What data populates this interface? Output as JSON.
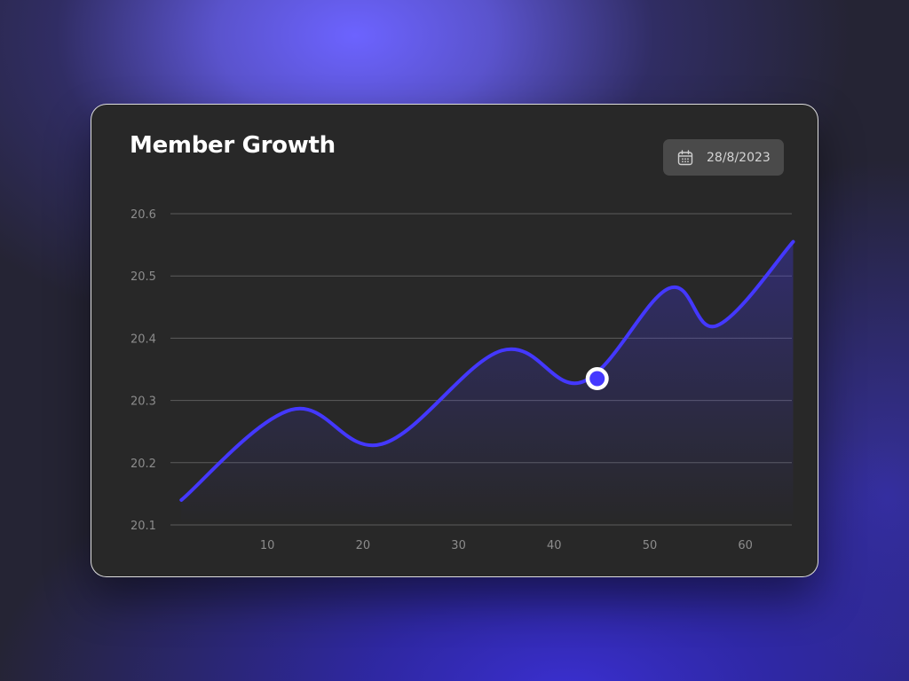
{
  "chart_data": {
    "type": "line",
    "title": "Member Growth",
    "xlabel": "",
    "ylabel": "",
    "x_ticks": [
      "10",
      "20",
      "30",
      "40",
      "50",
      "60"
    ],
    "y_ticks": [
      "20.6",
      "20.5",
      "20.4",
      "20.3",
      "20.2",
      "20.1"
    ],
    "xlim": [
      0,
      65
    ],
    "ylim": [
      20.1,
      20.6
    ],
    "grid": true,
    "series": [
      {
        "x": [
          1,
          12.5,
          22,
          34.5,
          43,
          52,
          57,
          65
        ],
        "values": [
          20.14,
          20.285,
          20.23,
          20.38,
          20.33,
          20.48,
          20.42,
          20.555
        ]
      }
    ],
    "highlight": {
      "x": 44.5,
      "y": 20.335
    },
    "line_color": "#4438ff"
  },
  "date_picker": {
    "value": "28/8/2023",
    "icon": "calendar-icon"
  }
}
